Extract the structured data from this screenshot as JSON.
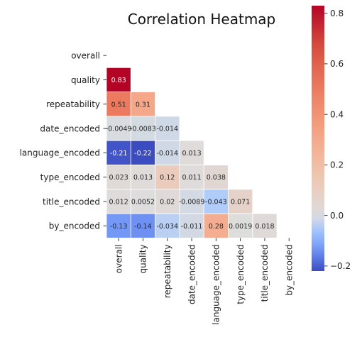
{
  "chart_data": {
    "type": "heatmap",
    "title": "Correlation Heatmap",
    "xlabel": "",
    "ylabel": "",
    "variables": [
      "overall",
      "quality",
      "repeatability",
      "date_encoded",
      "language_encoded",
      "type_encoded",
      "title_encoded",
      "by_encoded"
    ],
    "mask": "upper-triangle-including-diagonal",
    "cells": [
      {
        "row": "quality",
        "col": "overall",
        "value": 0.83,
        "label": "0.83"
      },
      {
        "row": "repeatability",
        "col": "overall",
        "value": 0.51,
        "label": "0.51"
      },
      {
        "row": "repeatability",
        "col": "quality",
        "value": 0.31,
        "label": "0.31"
      },
      {
        "row": "date_encoded",
        "col": "overall",
        "value": -0.0049,
        "label": "-0.0049"
      },
      {
        "row": "date_encoded",
        "col": "quality",
        "value": -0.0083,
        "label": "-0.0083"
      },
      {
        "row": "date_encoded",
        "col": "repeatability",
        "value": -0.014,
        "label": "-0.014"
      },
      {
        "row": "language_encoded",
        "col": "overall",
        "value": -0.21,
        "label": "-0.21"
      },
      {
        "row": "language_encoded",
        "col": "quality",
        "value": -0.22,
        "label": "-0.22"
      },
      {
        "row": "language_encoded",
        "col": "repeatability",
        "value": -0.014,
        "label": "-0.014"
      },
      {
        "row": "language_encoded",
        "col": "date_encoded",
        "value": 0.013,
        "label": "0.013"
      },
      {
        "row": "type_encoded",
        "col": "overall",
        "value": 0.023,
        "label": "0.023"
      },
      {
        "row": "type_encoded",
        "col": "quality",
        "value": 0.013,
        "label": "0.013"
      },
      {
        "row": "type_encoded",
        "col": "repeatability",
        "value": 0.12,
        "label": "0.12"
      },
      {
        "row": "type_encoded",
        "col": "date_encoded",
        "value": 0.011,
        "label": "0.011"
      },
      {
        "row": "type_encoded",
        "col": "language_encoded",
        "value": 0.038,
        "label": "0.038"
      },
      {
        "row": "title_encoded",
        "col": "overall",
        "value": 0.012,
        "label": "0.012"
      },
      {
        "row": "title_encoded",
        "col": "quality",
        "value": 0.0052,
        "label": "0.0052"
      },
      {
        "row": "title_encoded",
        "col": "repeatability",
        "value": 0.02,
        "label": "0.02"
      },
      {
        "row": "title_encoded",
        "col": "date_encoded",
        "value": -0.0089,
        "label": "-0.0089"
      },
      {
        "row": "title_encoded",
        "col": "language_encoded",
        "value": -0.043,
        "label": "-0.043"
      },
      {
        "row": "title_encoded",
        "col": "type_encoded",
        "value": 0.071,
        "label": "0.071"
      },
      {
        "row": "by_encoded",
        "col": "overall",
        "value": -0.13,
        "label": "-0.13"
      },
      {
        "row": "by_encoded",
        "col": "quality",
        "value": -0.14,
        "label": "-0.14"
      },
      {
        "row": "by_encoded",
        "col": "repeatability",
        "value": -0.034,
        "label": "-0.034"
      },
      {
        "row": "by_encoded",
        "col": "date_encoded",
        "value": -0.011,
        "label": "-0.011"
      },
      {
        "row": "by_encoded",
        "col": "language_encoded",
        "value": 0.28,
        "label": "0.28"
      },
      {
        "row": "by_encoded",
        "col": "type_encoded",
        "value": 0.0019,
        "label": "0.0019"
      },
      {
        "row": "by_encoded",
        "col": "title_encoded",
        "value": 0.018,
        "label": "0.018"
      }
    ],
    "colormap": "coolwarm",
    "colorbar": {
      "range": [
        -0.22,
        0.83
      ],
      "center": 0.0,
      "ticks": [
        -0.2,
        0.0,
        0.2,
        0.4,
        0.6,
        0.8
      ],
      "tick_labels": [
        "−0.2",
        "0.0",
        "0.2",
        "0.4",
        "0.6",
        "0.8"
      ]
    },
    "legend": "none",
    "grid": false
  }
}
